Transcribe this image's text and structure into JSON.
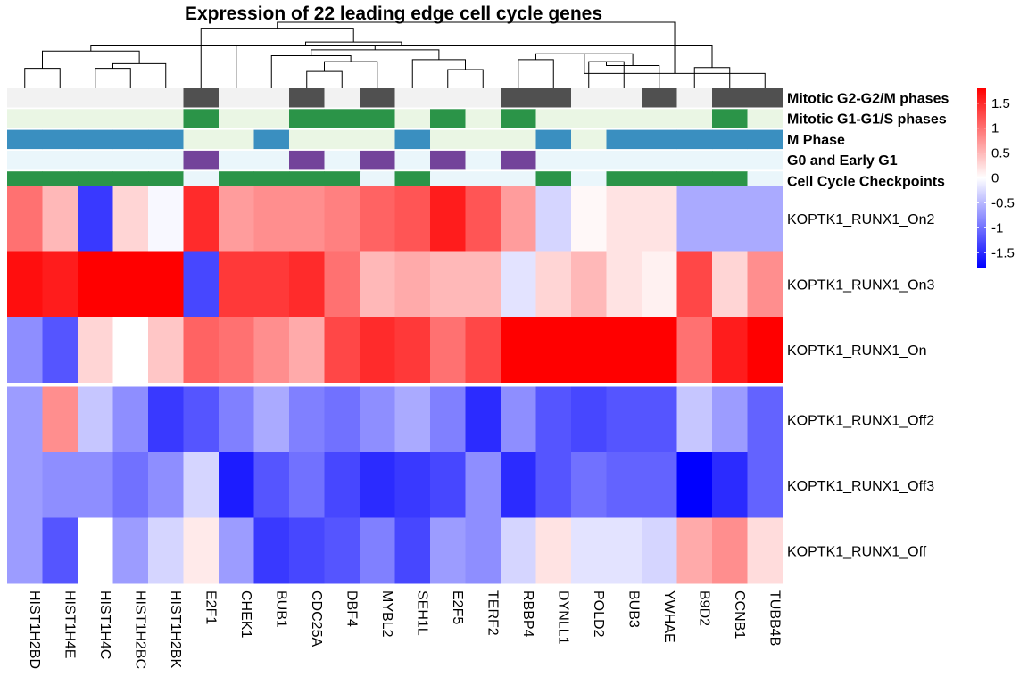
{
  "chart_data": {
    "type": "heatmap",
    "title": "Expression of 22 leading edge cell cycle genes",
    "columns": [
      "HIST1H2BD",
      "HIST1H4E",
      "HIST1H4C",
      "HIST1H2BC",
      "HIST1H2BK",
      "E2F1",
      "CHEK1",
      "BUB1",
      "CDC25A",
      "DBF4",
      "MYBL2",
      "SEH1L",
      "E2F5",
      "TERF2",
      "RBBP4",
      "DYNLL1",
      "POLD2",
      "BUB3",
      "YWHAE",
      "B9D2",
      "CCNB1",
      "TUBB4B"
    ],
    "rows": [
      "KOPTK1_RUNX1_On2",
      "KOPTK1_RUNX1_On3",
      "KOPTK1_RUNX1_On",
      "KOPTK1_RUNX1_Off2",
      "KOPTK1_RUNX1_Off3",
      "KOPTK1_RUNX1_Off"
    ],
    "row_split_after": 3,
    "values": [
      [
        1.0,
        0.5,
        -1.4,
        0.3,
        -0.05,
        1.5,
        0.7,
        0.8,
        0.8,
        0.9,
        1.1,
        1.2,
        1.6,
        1.2,
        0.7,
        -0.3,
        0.05,
        0.2,
        0.2,
        -0.6,
        -0.6,
        -0.6
      ],
      [
        1.7,
        1.6,
        1.8,
        1.8,
        1.8,
        -1.3,
        1.4,
        1.4,
        1.5,
        1.0,
        0.5,
        0.6,
        0.5,
        0.5,
        -0.2,
        0.3,
        0.5,
        0.2,
        0.1,
        1.3,
        0.3,
        0.8
      ],
      [
        -0.8,
        -1.2,
        0.3,
        0.0,
        0.4,
        1.1,
        1.0,
        0.8,
        0.6,
        1.3,
        1.5,
        1.4,
        1.0,
        1.3,
        1.8,
        1.8,
        1.8,
        1.8,
        1.8,
        1.0,
        1.6,
        1.8
      ],
      [
        -0.7,
        0.8,
        -0.4,
        -0.8,
        -1.4,
        -1.2,
        -0.9,
        -0.6,
        -0.9,
        -1.0,
        -0.8,
        -0.6,
        -0.9,
        -1.5,
        -0.8,
        -1.2,
        -1.3,
        -1.2,
        -1.2,
        -0.4,
        -0.7,
        -1.1
      ],
      [
        -0.7,
        -0.8,
        -0.8,
        -1.0,
        -0.8,
        -0.3,
        -1.6,
        -1.2,
        -1.0,
        -1.3,
        -1.5,
        -1.4,
        -1.3,
        -0.8,
        -1.5,
        -1.2,
        -1.0,
        -1.1,
        -1.1,
        -1.9,
        -1.5,
        -1.1
      ],
      [
        -0.7,
        -1.2,
        0.0,
        -0.7,
        -0.3,
        0.15,
        -0.7,
        -1.4,
        -1.3,
        -1.2,
        -0.9,
        -1.3,
        -0.7,
        -0.8,
        -0.3,
        0.2,
        -0.2,
        -0.2,
        -0.3,
        0.6,
        0.8,
        0.25
      ]
    ],
    "annotations": [
      {
        "label": "Mitotic G2-G2/M phases",
        "on_color": "#505050",
        "off_color": "#f2f2f2",
        "values": [
          0,
          0,
          0,
          0,
          0,
          1,
          0,
          0,
          1,
          0,
          1,
          0,
          0,
          0,
          1,
          1,
          0,
          0,
          1,
          0,
          1,
          1
        ]
      },
      {
        "label": "Mitotic G1-G1/S phases",
        "on_color": "#2b9448",
        "off_color": "#eaf6e4",
        "values": [
          0,
          0,
          0,
          0,
          0,
          1,
          0,
          0,
          1,
          1,
          1,
          0,
          1,
          0,
          1,
          0,
          0,
          0,
          0,
          0,
          1,
          0
        ]
      },
      {
        "label": "M Phase",
        "on_color": "#3a8fc0",
        "off_color": "#eaf6e4",
        "values": [
          1,
          1,
          1,
          1,
          1,
          0,
          0,
          1,
          0,
          0,
          0,
          1,
          0,
          0,
          0,
          1,
          0,
          1,
          1,
          1,
          1,
          1
        ]
      },
      {
        "label": "G0 and Early G1",
        "on_color": "#73439a",
        "off_color": "#eaf6fb",
        "values": [
          0,
          0,
          0,
          0,
          0,
          1,
          0,
          0,
          1,
          0,
          1,
          0,
          1,
          0,
          1,
          0,
          0,
          0,
          0,
          0,
          0,
          0
        ]
      },
      {
        "label": "Cell Cycle Checkpoints",
        "on_color": "#2b9448",
        "off_color": "#eaf6fb",
        "values": [
          1,
          1,
          1,
          1,
          1,
          0,
          1,
          1,
          1,
          1,
          0,
          1,
          0,
          0,
          0,
          1,
          0,
          1,
          1,
          1,
          1,
          0
        ]
      }
    ],
    "color_scale": {
      "min": -1.8,
      "max": 1.8,
      "low": "#0000ff",
      "mid": "#ffffff",
      "high": "#ff0000"
    },
    "legend": {
      "ticks": [
        1.5,
        1,
        0.5,
        0,
        -0.5,
        -1,
        -1.5
      ],
      "tick_labels": [
        "1.5",
        "1",
        "0.5",
        "0",
        "-0.5",
        "-1",
        "-1.5"
      ],
      "placement": "top-right"
    },
    "dendrogram": {
      "merges": [
        [
          0,
          1,
          0.28
        ],
        [
          2,
          3,
          0.28
        ],
        [
          -2,
          4,
          0.4
        ],
        [
          -1,
          -3,
          0.72
        ],
        [
          16,
          17,
          0.45
        ],
        [
          -5,
          18,
          0.35
        ],
        [
          14,
          15,
          0.5
        ],
        [
          -7,
          -6,
          0.65
        ],
        [
          19,
          20,
          0.3
        ],
        [
          -8,
          21,
          0.15
        ],
        [
          -9,
          -4,
          0.85
        ],
        [
          12,
          13,
          0.25
        ],
        [
          11,
          -12,
          0.5
        ],
        [
          8,
          9,
          0.2
        ],
        [
          10,
          -14,
          0.45
        ],
        [
          7,
          -15,
          0.6
        ],
        [
          -16,
          -13,
          0.75
        ],
        [
          6,
          -17,
          0.87
        ],
        [
          -18,
          -11,
          0.95
        ],
        [
          5,
          -19,
          1.3
        ],
        [
          -20,
          -10,
          1.45
        ]
      ],
      "comment": ""
    }
  }
}
